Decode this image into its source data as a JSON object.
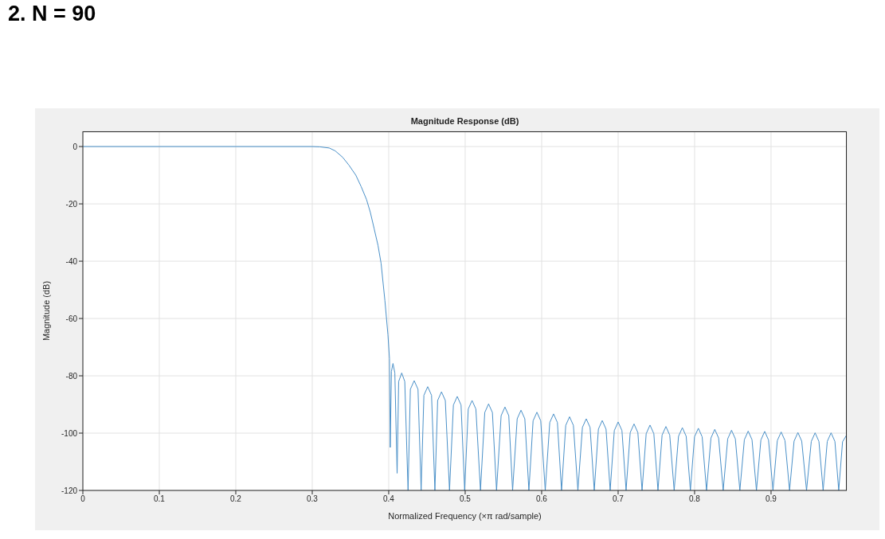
{
  "chart_data": {
    "type": "line",
    "title": "2. N = 90",
    "subtitle": "Magnitude Response (dB)",
    "xlabel": "Normalized Frequency (×π rad/sample)",
    "ylabel": "Magnitude (dB)",
    "xlim": [
      0,
      0.999
    ],
    "ylim": [
      -120,
      5.3
    ],
    "xticks": [
      0,
      0.1,
      0.2,
      0.3,
      0.4,
      0.5,
      0.6,
      0.7,
      0.8,
      0.9
    ],
    "yticks": [
      -120,
      -100,
      -80,
      -60,
      -40,
      -20,
      0
    ],
    "grid": true,
    "series": [
      {
        "color": "#4a90c8",
        "x": [
          0,
          0.1,
          0.2,
          0.3,
          0.31,
          0.3222,
          0.33,
          0.3396,
          0.348,
          0.357,
          0.364,
          0.371,
          0.376,
          0.381,
          0.386,
          0.39,
          0.395,
          0.399,
          0.401,
          0.402,
          0.4035,
          0.4056,
          0.408,
          0.411,
          0.413,
          0.417,
          0.421,
          0.4253,
          0.4283,
          0.4333,
          0.4383,
          0.4424,
          0.446,
          0.451,
          0.456,
          0.4604,
          0.464,
          0.469,
          0.474,
          0.4795,
          0.4846,
          0.4896,
          0.4946,
          0.4993,
          0.504,
          0.509,
          0.514,
          0.52,
          0.5256,
          0.5306,
          0.5356,
          0.541,
          0.547,
          0.552,
          0.557,
          0.562,
          0.568,
          0.573,
          0.578,
          0.5833,
          0.5888,
          0.5938,
          0.5988,
          0.6047,
          0.6106,
          0.6156,
          0.6206,
          0.626,
          0.6315,
          0.6365,
          0.6415,
          0.6474,
          0.6533,
          0.6583,
          0.6633,
          0.6688,
          0.6742,
          0.6792,
          0.6842,
          0.6896,
          0.695,
          0.7,
          0.705,
          0.7104,
          0.7158,
          0.7208,
          0.7258,
          0.7313,
          0.7367,
          0.7417,
          0.7467,
          0.7521,
          0.7575,
          0.7625,
          0.7675,
          0.7733,
          0.779,
          0.784,
          0.789,
          0.7945,
          0.7999,
          0.8049,
          0.8099,
          0.8156,
          0.8214,
          0.8264,
          0.8314,
          0.8374,
          0.8433,
          0.8483,
          0.8533,
          0.8592,
          0.8651,
          0.8701,
          0.8751,
          0.8809,
          0.8867,
          0.8917,
          0.8967,
          0.9025,
          0.9082,
          0.9132,
          0.9182,
          0.9242,
          0.9301,
          0.9351,
          0.9401,
          0.9464,
          0.9526,
          0.9576,
          0.9626,
          0.9681,
          0.9735,
          0.9785,
          0.9835,
          0.9885,
          0.9935,
          0.999
        ],
        "values": [
          0,
          0,
          0,
          0,
          -0.1,
          -0.5,
          -1.5,
          -3.7,
          -6.5,
          -10,
          -14,
          -18.5,
          -23,
          -28.7,
          -34.5,
          -40.7,
          -53.7,
          -65.7,
          -74,
          -105,
          -78.5,
          -75.7,
          -79,
          -114,
          -82,
          -79,
          -82,
          -120,
          -84.7,
          -81.7,
          -84.7,
          -120,
          -86.8,
          -83.8,
          -86.8,
          -120,
          -88.6,
          -85.6,
          -88.6,
          -120,
          -90.2,
          -87.2,
          -90.2,
          -120,
          -91.6,
          -88.6,
          -91.6,
          -120,
          -92.8,
          -89.8,
          -92.8,
          -120,
          -93.9,
          -90.9,
          -93.9,
          -120,
          -95,
          -92,
          -95,
          -120,
          -95.7,
          -92.7,
          -95.7,
          -120,
          -96.3,
          -93.3,
          -96.3,
          -120,
          -97.3,
          -94.3,
          -97.3,
          -120,
          -98,
          -95,
          -98,
          -120,
          -98.6,
          -95.6,
          -98.6,
          -120,
          -99.1,
          -96.1,
          -99.1,
          -120,
          -99.8,
          -96.8,
          -99.8,
          -120,
          -100.2,
          -97.2,
          -100.2,
          -120,
          -100.7,
          -97.7,
          -100.7,
          -120,
          -101.1,
          -98.1,
          -101.1,
          -120,
          -101.3,
          -98.3,
          -101.3,
          -120,
          -101.7,
          -98.7,
          -101.7,
          -120,
          -102,
          -99,
          -102,
          -120,
          -102.3,
          -99.3,
          -102.3,
          -120,
          -102.4,
          -99.4,
          -102.4,
          -120,
          -102.6,
          -99.6,
          -102.6,
          -120,
          -102.8,
          -99.8,
          -102.8,
          -120,
          -102.9,
          -99.9,
          -102.9,
          -120,
          -102.9,
          -99.9,
          -102.9,
          -120,
          -103,
          -100.6
        ]
      }
    ]
  }
}
